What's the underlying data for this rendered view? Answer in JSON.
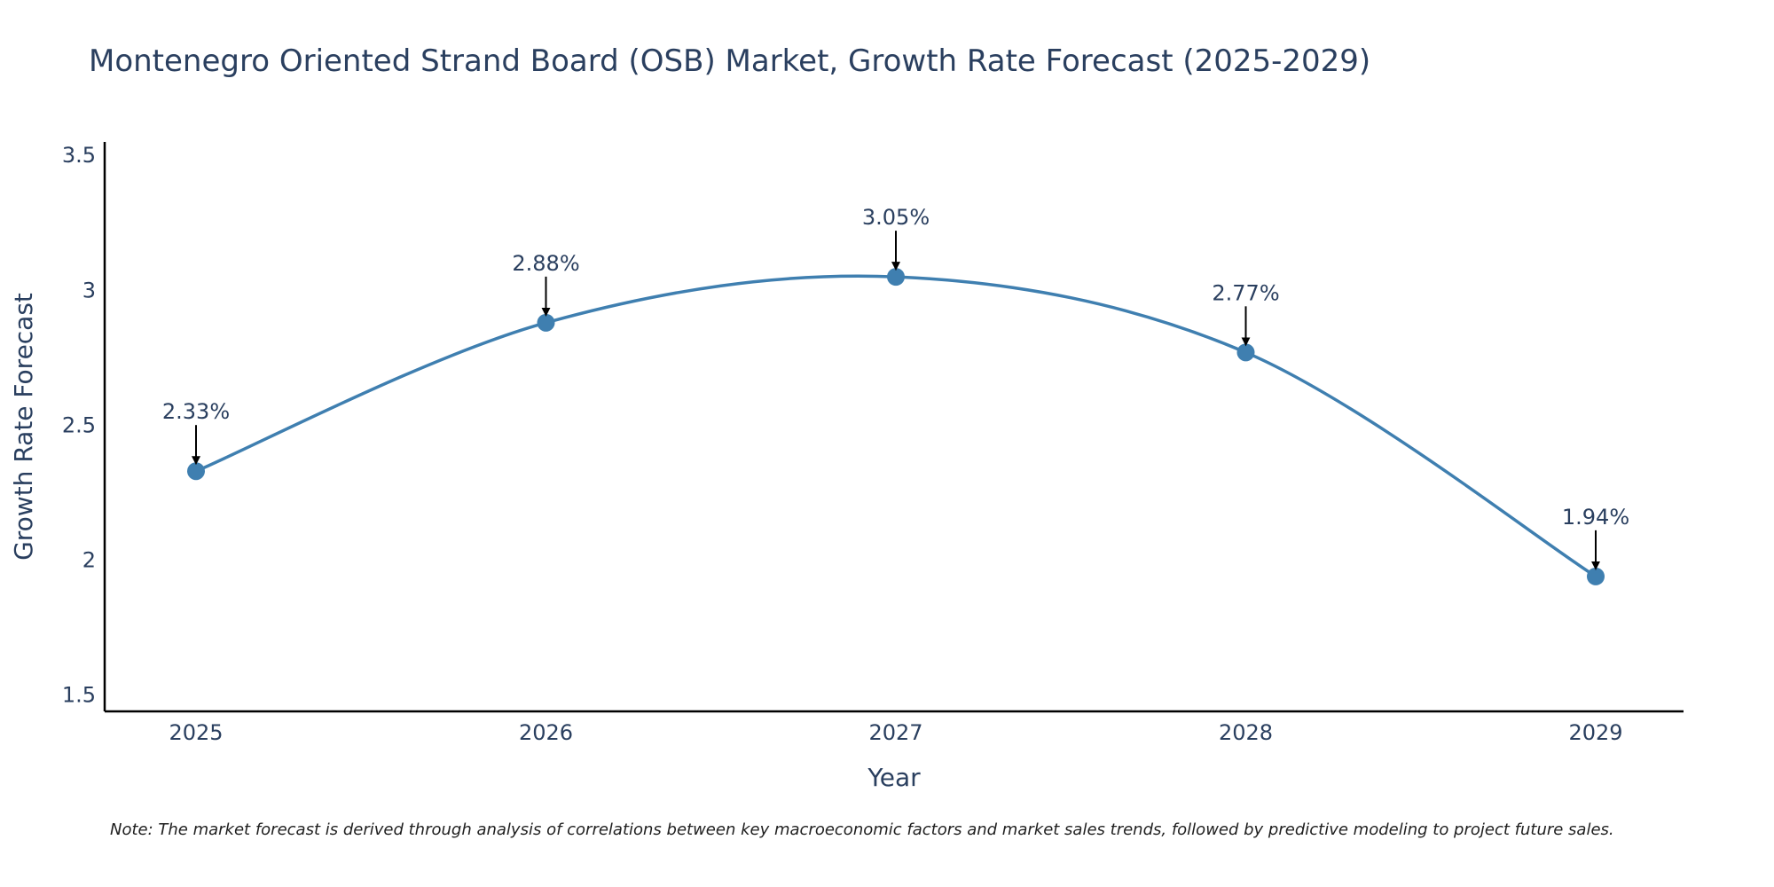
{
  "chart_data": {
    "type": "line",
    "title": "Montenegro Oriented Strand Board (OSB) Market, Growth Rate Forecast (2025-2029)",
    "xlabel": "Year",
    "ylabel": "Growth Rate Forecast",
    "categories": [
      "2025",
      "2026",
      "2027",
      "2028",
      "2029"
    ],
    "series": [
      {
        "values": [
          2.33,
          2.88,
          3.05,
          2.77,
          1.94
        ],
        "labels": [
          "2.33%",
          "2.88%",
          "3.05%",
          "2.77%",
          "1.94%"
        ]
      }
    ],
    "ylim": [
      1.44,
      3.55
    ],
    "yticks": [
      "1.5",
      "2",
      "2.5",
      "3",
      "3.5"
    ],
    "ytick_values": [
      1.5,
      2,
      2.5,
      3,
      3.5
    ],
    "line_shape": "spline",
    "grid": false,
    "colors": {
      "line": "#3f7fb0",
      "marker": "#3f7fb0",
      "text": "#2a3f5f",
      "axis": "#000000"
    }
  },
  "note": "Note: The market forecast is derived through analysis of correlations between key macroeconomic factors and market sales trends, followed by predictive modeling to project future sales."
}
